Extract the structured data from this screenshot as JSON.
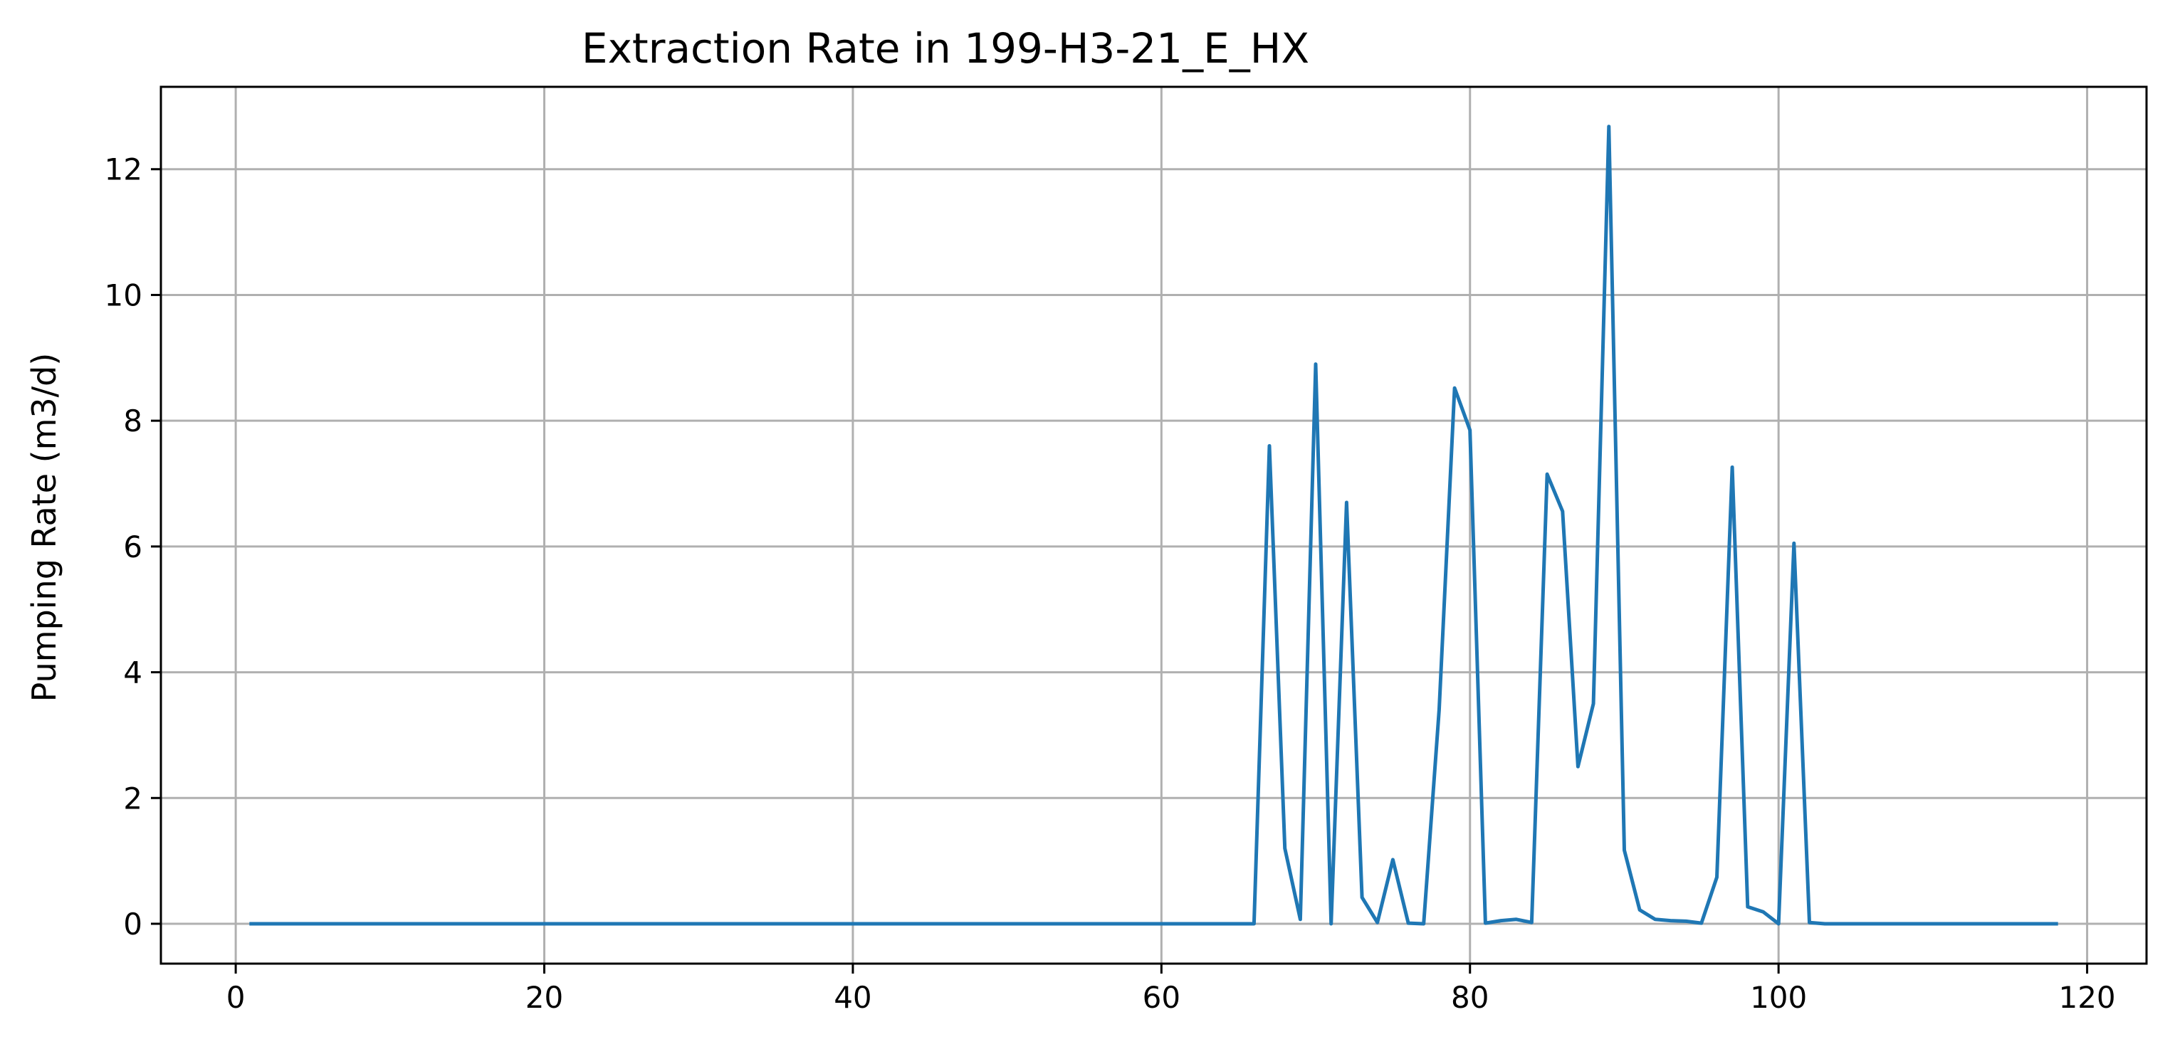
{
  "chart_data": {
    "type": "line",
    "title": "Extraction Rate in 199-H3-21_E_HX",
    "xlabel": "",
    "ylabel": "Pumping Rate (m3/d)",
    "xlim": [
      -4.85,
      123.85
    ],
    "ylim": [
      -0.634,
      13.31
    ],
    "grid": true,
    "xticks": [
      0,
      20,
      40,
      60,
      80,
      100,
      120
    ],
    "yticks": [
      0,
      2,
      4,
      6,
      8,
      10,
      12
    ],
    "xtick_labels": [
      "0",
      "20",
      "40",
      "60",
      "80",
      "100",
      "120"
    ],
    "ytick_labels": [
      "0",
      "2",
      "4",
      "6",
      "8",
      "10",
      "12"
    ],
    "series": [
      {
        "color": "#1f77b4",
        "x": [
          1,
          66,
          67,
          68,
          69,
          70,
          71,
          72,
          73,
          74,
          75,
          76,
          77,
          78,
          79,
          80,
          81,
          82,
          83,
          84,
          85,
          86,
          87,
          88,
          89,
          90,
          91,
          92,
          93,
          94,
          95,
          96,
          97,
          98,
          99,
          100,
          101,
          102,
          103,
          118
        ],
        "y": [
          0,
          0,
          7.6,
          1.2,
          0.07,
          8.9,
          0,
          6.7,
          0.42,
          0.02,
          1.02,
          0.01,
          0,
          3.4,
          8.52,
          7.85,
          0.01,
          0.05,
          0.07,
          0.02,
          7.15,
          6.56,
          2.5,
          3.5,
          12.68,
          1.17,
          0.22,
          0.07,
          0.05,
          0.04,
          0.01,
          0.74,
          7.26,
          0.27,
          0.19,
          0,
          6.05,
          0.02,
          0,
          0
        ]
      }
    ]
  }
}
